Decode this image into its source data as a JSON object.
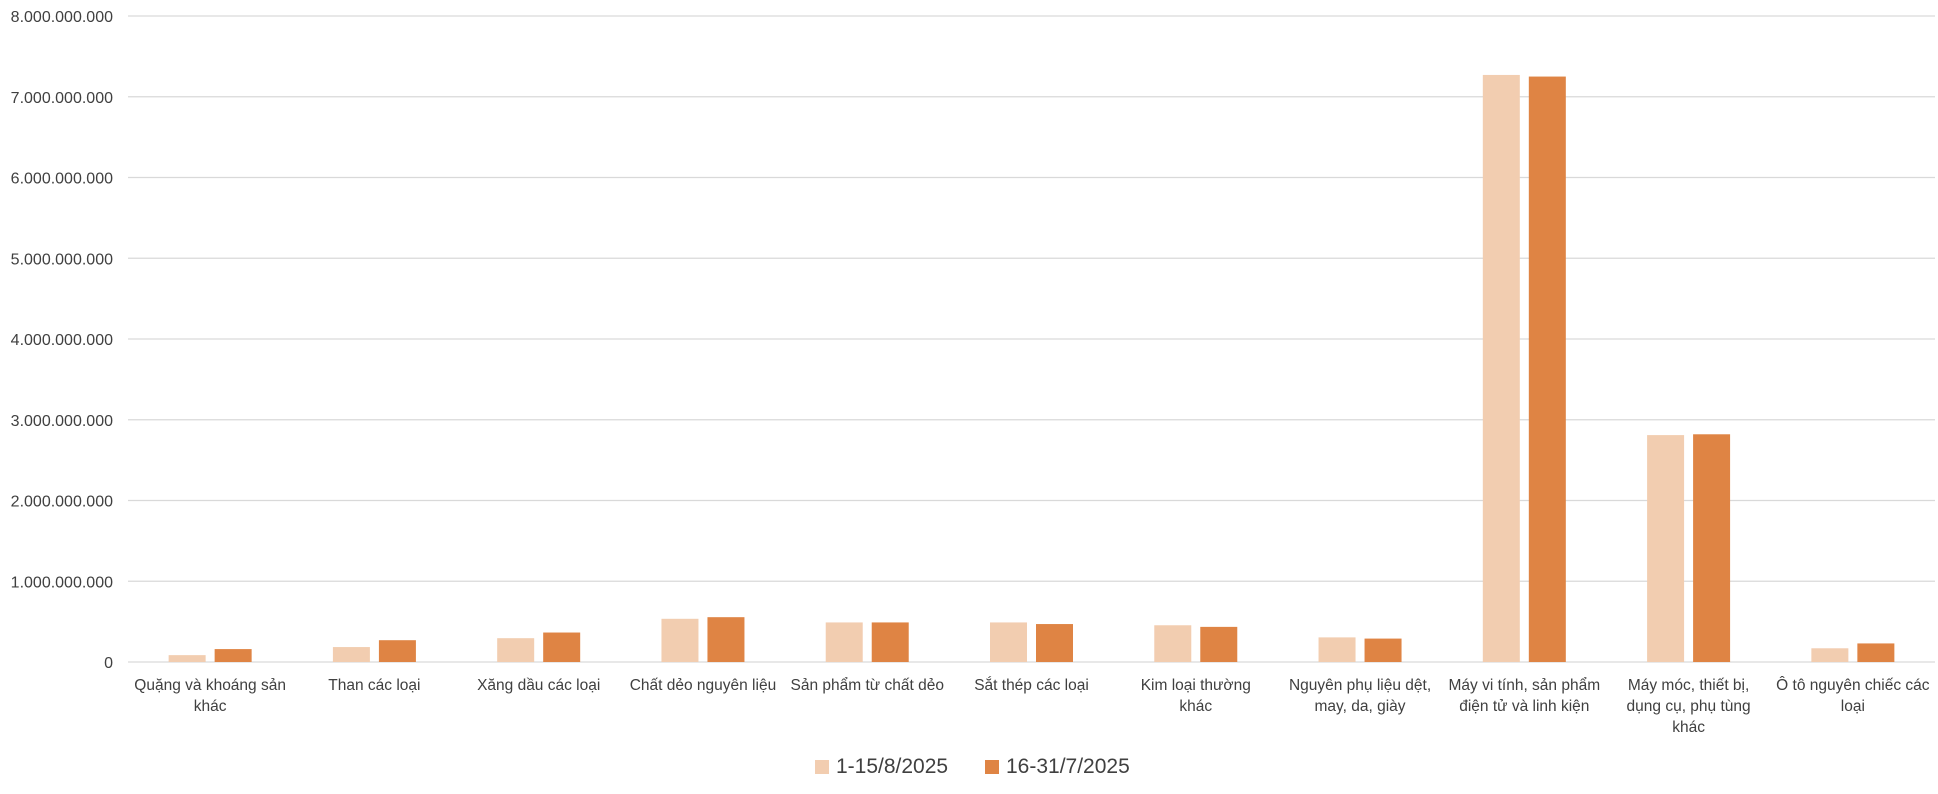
{
  "chart_data": {
    "type": "bar",
    "title": "",
    "xlabel": "",
    "ylabel": "",
    "ylim": [
      0,
      8000000000
    ],
    "yticks": [
      0,
      1000000000,
      2000000000,
      3000000000,
      4000000000,
      5000000000,
      6000000000,
      7000000000,
      8000000000
    ],
    "ytick_labels": [
      "0",
      "1.000.000.000",
      "2.000.000.000",
      "3.000.000.000",
      "4.000.000.000",
      "5.000.000.000",
      "6.000.000.000",
      "7.000.000.000",
      "8.000.000.000"
    ],
    "grid": true,
    "legend_position": "bottom",
    "categories": [
      [
        "Quặng và khoáng sản",
        "khác"
      ],
      [
        "Than các loại"
      ],
      [
        "Xăng dầu các loại"
      ],
      [
        "Chất dẻo nguyên liệu"
      ],
      [
        "Sản phẩm từ chất dẻo"
      ],
      [
        "Sắt thép các loại"
      ],
      [
        "Kim loại thường",
        "khác"
      ],
      [
        "Nguyên phụ liệu dệt,",
        "may, da, giày"
      ],
      [
        "Máy vi tính, sản phẩm",
        "điện tử và linh kiện"
      ],
      [
        "Máy móc, thiết bị,",
        "dụng cụ, phụ tùng",
        "khác"
      ],
      [
        "Ô tô nguyên chiếc các",
        "loại"
      ]
    ],
    "series": [
      {
        "name": "1-15/8/2025",
        "color": "#f2cdb0",
        "values": [
          85000000,
          185000000,
          295000000,
          535000000,
          490000000,
          490000000,
          455000000,
          305000000,
          7270000000,
          2810000000,
          170000000
        ]
      },
      {
        "name": "16-31/7/2025",
        "color": "#df8444",
        "values": [
          160000000,
          270000000,
          365000000,
          555000000,
          490000000,
          470000000,
          435000000,
          290000000,
          7250000000,
          2820000000,
          230000000
        ]
      }
    ]
  }
}
